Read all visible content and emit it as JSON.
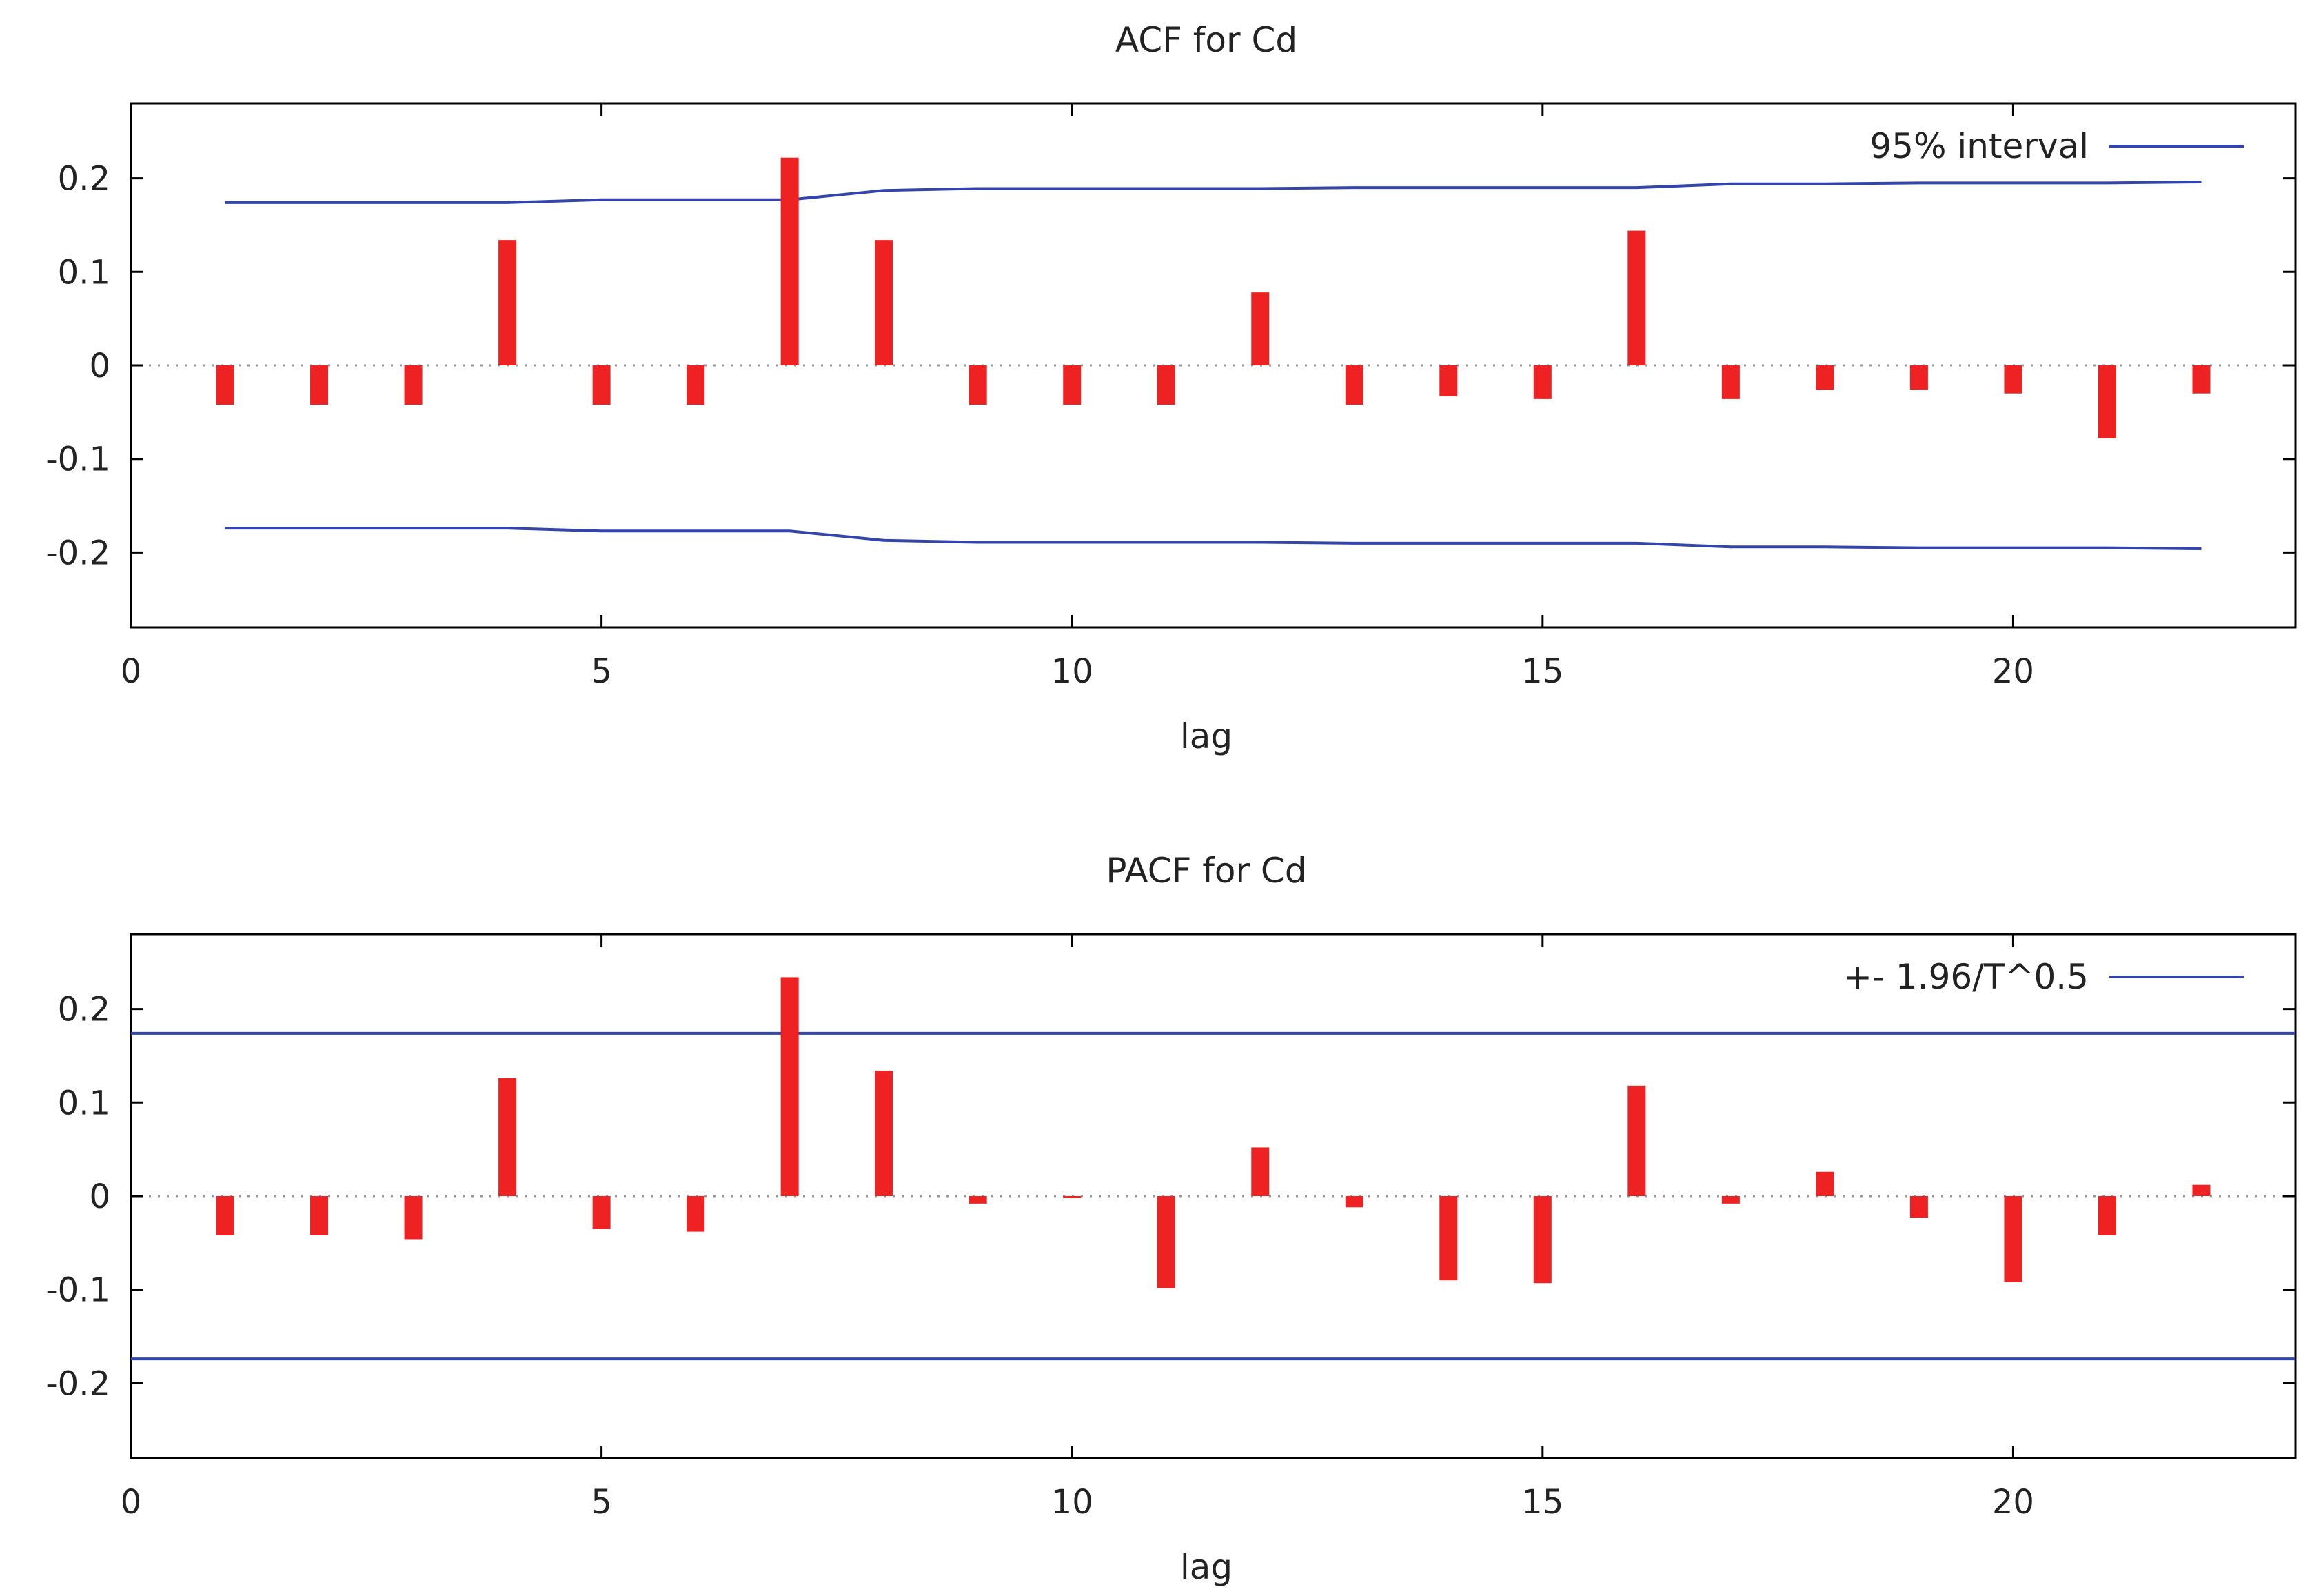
{
  "chart_data": [
    {
      "type": "bar",
      "title": "ACF for Cd",
      "xlabel": "lag",
      "ylabel": "",
      "xlim": [
        0,
        23
      ],
      "ylim": [
        -0.28,
        0.28
      ],
      "xticks": [
        "0",
        "5",
        "10",
        "15",
        "20"
      ],
      "yticks": [
        "0.2",
        "0.1",
        "0",
        "-0.1",
        "-0.2"
      ],
      "x": [
        1,
        2,
        3,
        4,
        5,
        6,
        7,
        8,
        9,
        10,
        11,
        12,
        13,
        14,
        15,
        16,
        17,
        18,
        19,
        20,
        21,
        22
      ],
      "values": [
        -0.042,
        -0.042,
        -0.042,
        0.134,
        -0.042,
        -0.042,
        0.222,
        0.134,
        -0.042,
        -0.042,
        -0.042,
        0.078,
        -0.042,
        -0.033,
        -0.036,
        0.144,
        -0.036,
        -0.026,
        -0.026,
        -0.03,
        -0.078,
        -0.03
      ],
      "bar_color": "#ee2222",
      "legend": {
        "label": "95% interval",
        "position": "top-right",
        "color": "#3344aa"
      },
      "interval": {
        "x": [
          1,
          2,
          3,
          4,
          5,
          6,
          7,
          8,
          9,
          10,
          11,
          12,
          13,
          14,
          15,
          16,
          17,
          18,
          19,
          20,
          21,
          22
        ],
        "upper": [
          0.174,
          0.174,
          0.174,
          0.174,
          0.177,
          0.177,
          0.177,
          0.187,
          0.189,
          0.189,
          0.189,
          0.189,
          0.19,
          0.19,
          0.19,
          0.19,
          0.194,
          0.194,
          0.195,
          0.195,
          0.195,
          0.196
        ],
        "lower": [
          -0.174,
          -0.174,
          -0.174,
          -0.174,
          -0.177,
          -0.177,
          -0.177,
          -0.187,
          -0.189,
          -0.189,
          -0.189,
          -0.189,
          -0.19,
          -0.19,
          -0.19,
          -0.19,
          -0.194,
          -0.194,
          -0.195,
          -0.195,
          -0.195,
          -0.196
        ]
      }
    },
    {
      "type": "bar",
      "title": "PACF for Cd",
      "xlabel": "lag",
      "ylabel": "",
      "xlim": [
        0,
        23
      ],
      "ylim": [
        -0.28,
        0.28
      ],
      "xticks": [
        "0",
        "5",
        "10",
        "15",
        "20"
      ],
      "yticks": [
        "0.2",
        "0.1",
        "0",
        "-0.1",
        "-0.2"
      ],
      "x": [
        1,
        2,
        3,
        4,
        5,
        6,
        7,
        8,
        9,
        10,
        11,
        12,
        13,
        14,
        15,
        16,
        17,
        18,
        19,
        20,
        21,
        22
      ],
      "values": [
        -0.042,
        -0.042,
        -0.046,
        0.126,
        -0.035,
        -0.038,
        0.234,
        0.134,
        -0.008,
        -0.002,
        -0.098,
        0.052,
        -0.012,
        -0.09,
        -0.093,
        0.118,
        -0.008,
        0.026,
        -0.023,
        -0.092,
        -0.042,
        0.012
      ],
      "bar_color": "#ee2222",
      "legend": {
        "label": "+- 1.96/T^0.5",
        "position": "top-right",
        "color": "#3344aa"
      },
      "interval": {
        "constant": 0.174
      }
    }
  ]
}
